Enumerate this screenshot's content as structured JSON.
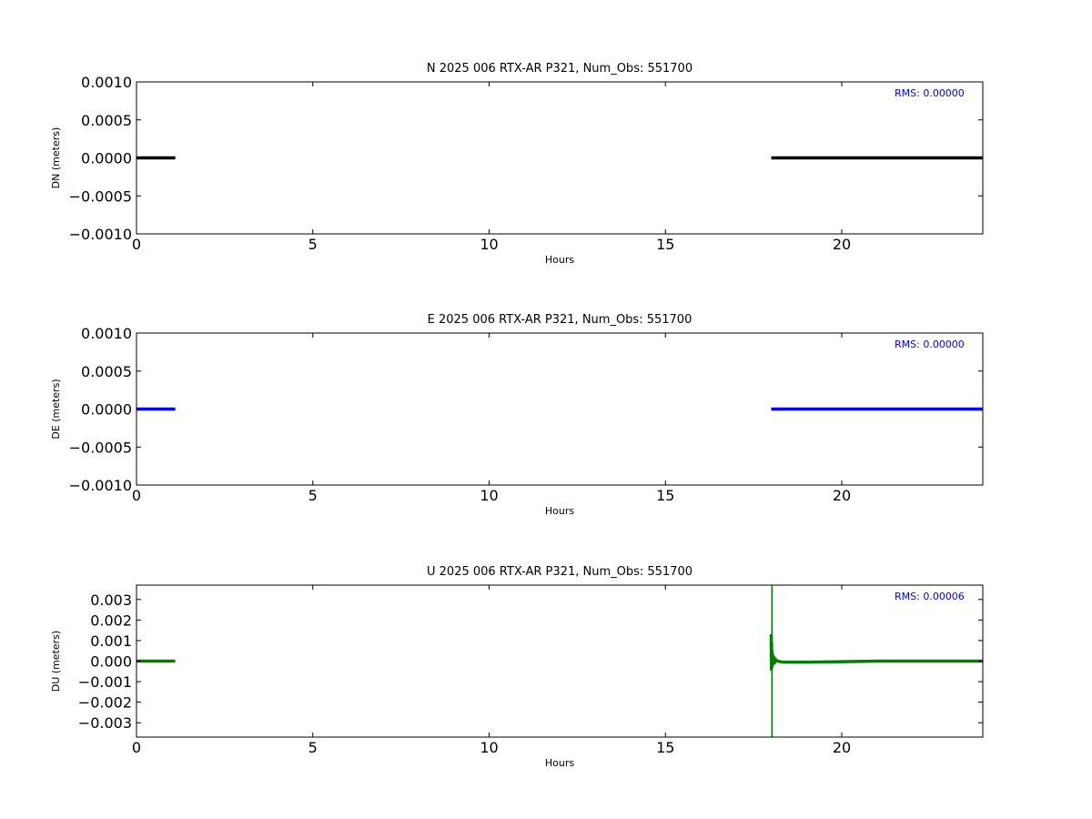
{
  "chart_data": [
    {
      "type": "line",
      "title": "N 2025 006 RTX-AR  P321, Num_Obs: 551700",
      "xlabel": "Hours",
      "ylabel": "DN (meters)",
      "xlim": [
        0,
        24
      ],
      "ylim": [
        -0.001,
        0.001
      ],
      "xticks": [
        0,
        5,
        10,
        15,
        20
      ],
      "xtick_labels": [
        "0",
        "5",
        "10",
        "15",
        "20"
      ],
      "yticks": [
        -0.001,
        -0.0005,
        0,
        0.0005,
        0.001
      ],
      "ytick_labels": [
        "−0.0010",
        "−0.0005",
        "0.0000",
        "0.0005",
        "0.0010"
      ],
      "annotation": "RMS:  0.00000",
      "annotation_color": "#0000ff",
      "grid": false,
      "series": [
        {
          "color": "#000000",
          "segments": [
            {
              "x": [
                0.0,
                0.3,
                0.6,
                0.9,
                1.1
              ],
              "y": [
                0,
                0,
                0,
                0,
                0
              ]
            },
            {
              "x": [
                18.0,
                19.0,
                20.0,
                21.0,
                22.0,
                23.0,
                24.0
              ],
              "y": [
                0,
                0,
                0,
                0,
                0,
                0,
                0
              ]
            }
          ]
        }
      ]
    },
    {
      "type": "line",
      "title": "E 2025 006 RTX-AR  P321, Num_Obs: 551700",
      "xlabel": "Hours",
      "ylabel": "DE (meters)",
      "xlim": [
        0,
        24
      ],
      "ylim": [
        -0.001,
        0.001
      ],
      "xticks": [
        0,
        5,
        10,
        15,
        20
      ],
      "xtick_labels": [
        "0",
        "5",
        "10",
        "15",
        "20"
      ],
      "yticks": [
        -0.001,
        -0.0005,
        0,
        0.0005,
        0.001
      ],
      "ytick_labels": [
        "−0.0010",
        "−0.0005",
        "0.0000",
        "0.0005",
        "0.0010"
      ],
      "annotation": "RMS:  0.00000",
      "annotation_color": "#0000ff",
      "grid": false,
      "series": [
        {
          "color": "#0000ff",
          "segments": [
            {
              "x": [
                0.0,
                0.3,
                0.6,
                0.9,
                1.1
              ],
              "y": [
                0,
                0,
                0,
                0,
                0
              ]
            },
            {
              "x": [
                18.0,
                19.0,
                20.0,
                21.0,
                22.0,
                23.0,
                24.0
              ],
              "y": [
                0,
                0,
                0,
                0,
                0,
                0,
                0
              ]
            }
          ]
        }
      ]
    },
    {
      "type": "line",
      "title": "U 2025 006 RTX-AR  P321, Num_Obs: 551700",
      "xlabel": "Hours",
      "ylabel": "DU (meters)",
      "xlim": [
        0,
        24
      ],
      "ylim": [
        -0.0037,
        0.0037
      ],
      "xticks": [
        0,
        5,
        10,
        15,
        20
      ],
      "xtick_labels": [
        "0",
        "5",
        "10",
        "15",
        "20"
      ],
      "yticks": [
        -0.003,
        -0.002,
        -0.001,
        0,
        0.001,
        0.002,
        0.003
      ],
      "ytick_labels": [
        "−0.003",
        "−0.002",
        "−0.001",
        "0.000",
        "0.001",
        "0.002",
        "0.003"
      ],
      "annotation": "RMS:  0.00006",
      "annotation_color": "#0000ff",
      "grid": false,
      "series": [
        {
          "color": "#008000",
          "segments": [
            {
              "x": [
                0.0,
                0.3,
                0.6,
                0.9,
                1.1
              ],
              "y": [
                0,
                0,
                0,
                0,
                0
              ]
            },
            {
              "x": [
                18.0,
                18.005,
                18.01,
                18.015,
                18.02,
                18.03,
                18.04,
                18.05,
                18.07,
                18.09,
                18.12,
                18.15,
                18.2,
                18.3,
                18.5,
                19.0,
                20.0,
                21.0,
                22.0,
                23.0,
                24.0
              ],
              "y": [
                0.0013,
                -0.0004,
                0.0009,
                -0.0003,
                0.0005,
                -0.0002,
                0.0003,
                -0.0001,
                0.0002,
                -0.0001,
                0.0001,
                0.0,
                0.0,
                -5e-05,
                -5e-05,
                -5e-05,
                -3e-05,
                0.0,
                0.0,
                0.0,
                0.0
              ]
            },
            {
              "x": [
                18.02,
                18.02
              ],
              "y": [
                0.0037,
                -0.0037
              ]
            }
          ]
        }
      ]
    }
  ]
}
